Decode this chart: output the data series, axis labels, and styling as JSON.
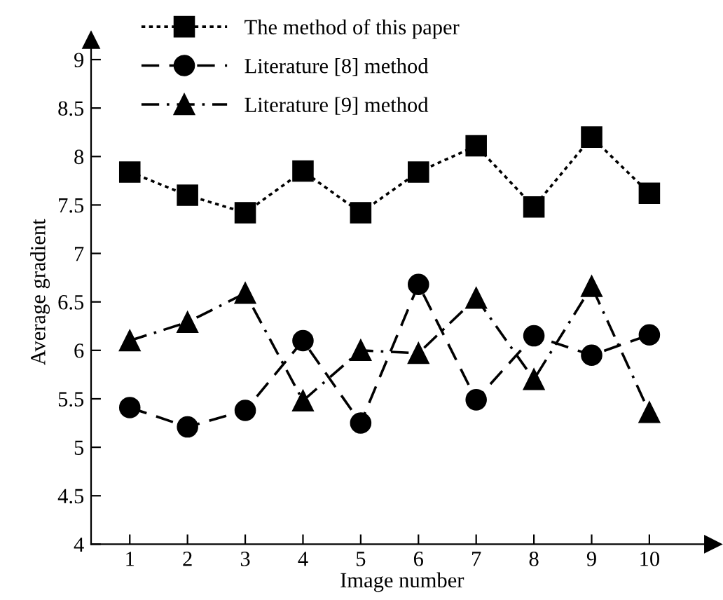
{
  "chart_data": {
    "type": "line",
    "xlabel": "Image number",
    "ylabel": "Average gradient",
    "x": [
      1,
      2,
      3,
      4,
      5,
      6,
      7,
      8,
      9,
      10
    ],
    "xlim": [
      0.33,
      11.1
    ],
    "xticks": [
      1,
      2,
      3,
      4,
      5,
      6,
      7,
      8,
      9,
      10
    ],
    "ylim": [
      4,
      9.2
    ],
    "yticks": [
      4,
      4.5,
      5,
      5.5,
      6,
      6.5,
      7,
      7.5,
      8,
      8.5,
      9
    ],
    "grid": false,
    "legend": "top left",
    "series": [
      {
        "name": "The method of this paper",
        "color": "#000000",
        "marker": "square",
        "line_style": "dotted",
        "values": [
          7.84,
          7.6,
          7.42,
          7.85,
          7.42,
          7.84,
          8.11,
          7.48,
          8.2,
          7.62
        ]
      },
      {
        "name": "Literature [8] method",
        "color": "#000000",
        "marker": "circle",
        "line_style": "dashed",
        "values": [
          5.41,
          5.21,
          5.38,
          6.1,
          5.25,
          6.68,
          5.49,
          6.15,
          5.95,
          6.16
        ]
      },
      {
        "name": "Literature [9] method",
        "color": "#000000",
        "marker": "triangle",
        "line_style": "dashdot",
        "values": [
          6.1,
          6.29,
          6.59,
          5.48,
          6.0,
          5.97,
          6.54,
          5.7,
          6.66,
          5.36
        ]
      }
    ]
  }
}
